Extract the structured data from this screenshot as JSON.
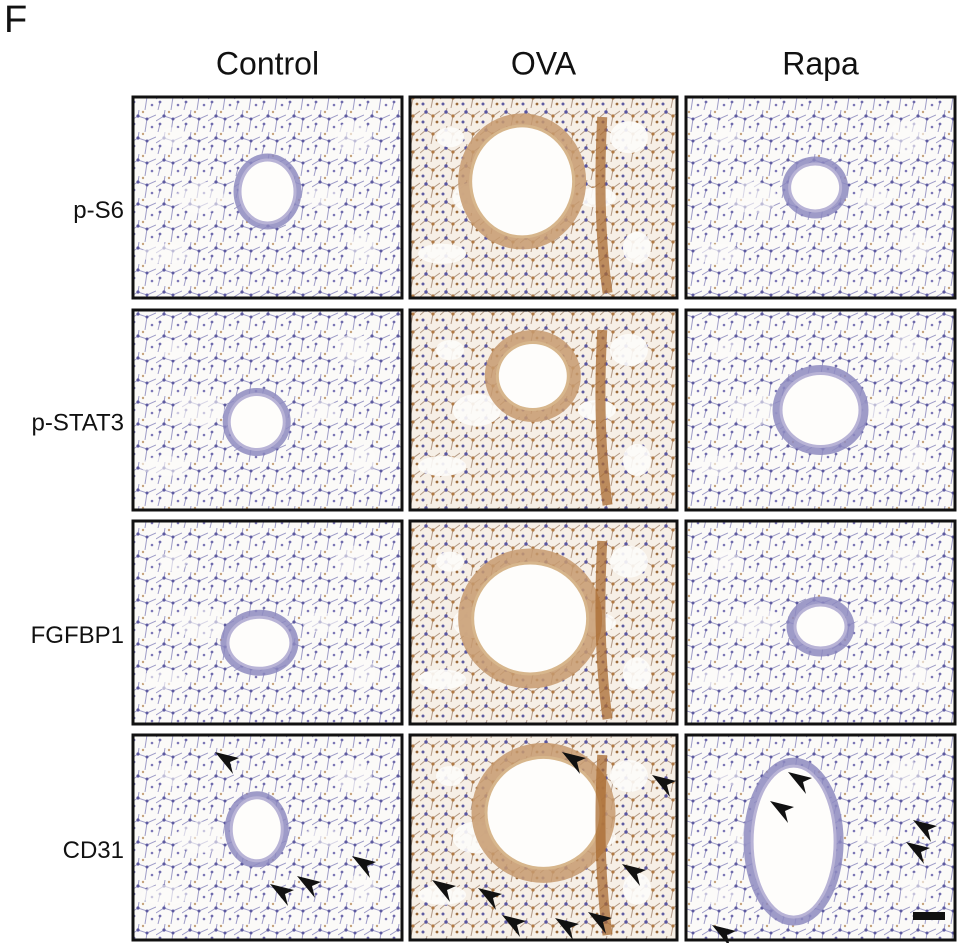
{
  "panel_label": "F",
  "columns": [
    "Control",
    "OVA",
    "Rapa"
  ],
  "rows": [
    "p-S6",
    "p-STAT3",
    "FGFBP1",
    "CD31"
  ]
}
